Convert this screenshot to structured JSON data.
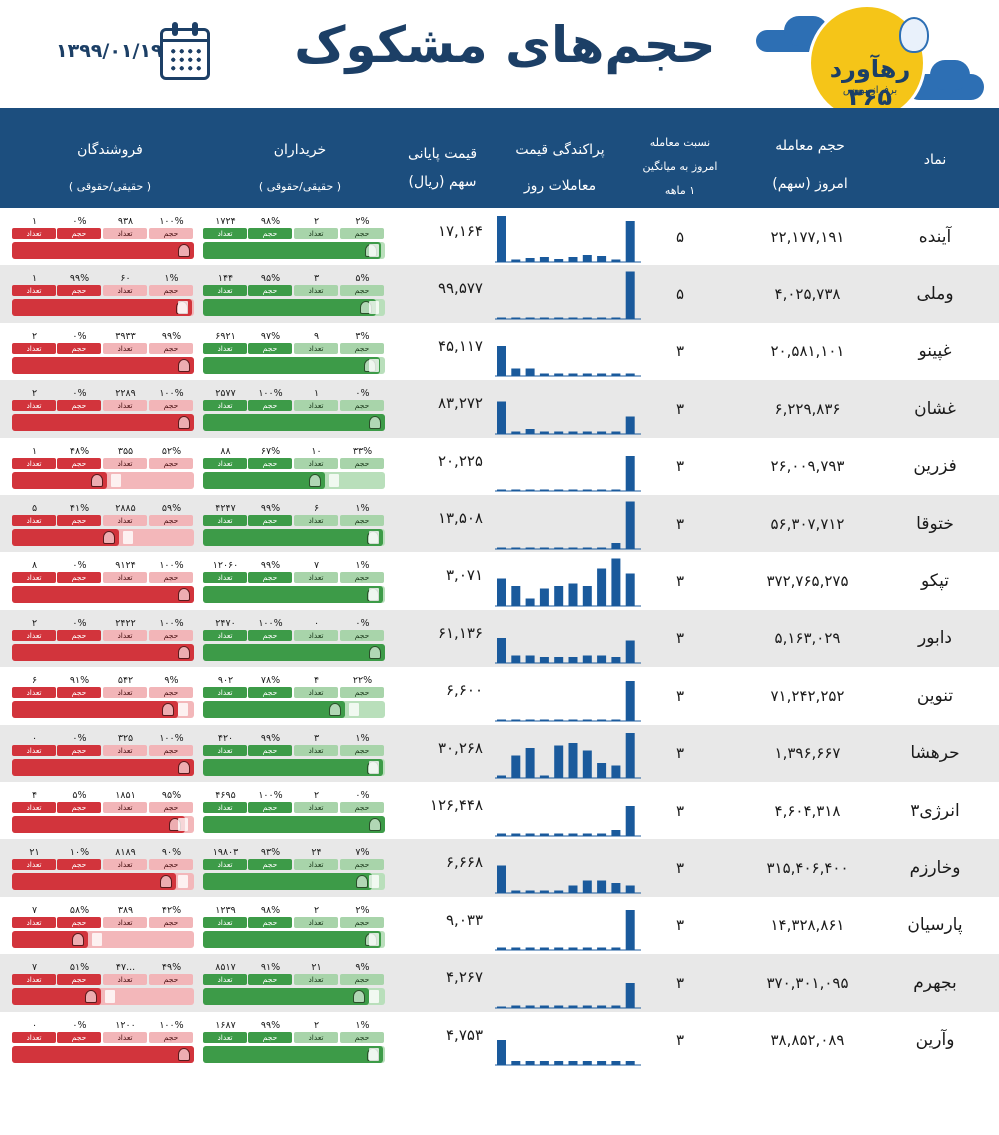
{
  "header": {
    "date": "۱۳۹۹/۰۱/۱۹",
    "title": "حجم‌های مشکوک",
    "calendar_icon": "calendar-icon",
    "logo": {
      "main": "رهآورد ۳۶۵",
      "sub": "برفراز بورس"
    }
  },
  "columns": {
    "symbol": "نماد",
    "volume": [
      "حجم معامله",
      "امروز (سهم)"
    ],
    "ratio": [
      "نسبت معامله",
      "امروز به میانگین",
      "۱ ماهه"
    ],
    "dist": [
      "پراکندگی قیمت",
      "معاملات روز"
    ],
    "price": [
      "قیمت پایانی",
      "سهم (ریال)"
    ],
    "buyers": [
      "خریداران",
      "( حقیقی/حقوقی )"
    ],
    "sellers": [
      "فروشندگان",
      "( حقیقی/حقوقی )"
    ]
  },
  "labels": {
    "volume": "حجم",
    "count": "تعداد"
  },
  "colors": {
    "header": "#1c4e7e",
    "title": "#1c3f66",
    "buy": "#3d9b48",
    "buy_light": "#b9dfbb",
    "sell": "#d2343c",
    "sell_light": "#f3b7ba",
    "bars": "#1a5a9c"
  },
  "rows": [
    {
      "symbol": "آینده",
      "volume": "۲۲,۱۷۷,۱۹۱",
      "ratio": "۵",
      "price": "۱۷,۱۶۴",
      "buy": [
        "۲%",
        "۲",
        "۹۸%",
        "۱۷۲۴"
      ],
      "buy_fill": 0.98,
      "sell": [
        "۱۰۰%",
        "۹۳۸",
        "۰%",
        "۱"
      ],
      "sell_fill": 1.0,
      "dist": [
        0.92,
        0.05,
        0.08,
        0.1,
        0.06,
        0.1,
        0.14,
        0.12,
        0.05,
        0.82
      ]
    },
    {
      "symbol": "وملی",
      "volume": "۴,۰۲۵,۷۳۸",
      "ratio": "۵",
      "price": "۹۹,۵۷۷",
      "buy": [
        "۵%",
        "۳",
        "۹۵%",
        "۱۴۴"
      ],
      "buy_fill": 0.95,
      "sell": [
        "۱%",
        "۶۰",
        "۹۹%",
        "۱"
      ],
      "sell_fill": 0.99,
      "dist": [
        0,
        0,
        0,
        0,
        0,
        0,
        0,
        0,
        0,
        0.95
      ]
    },
    {
      "symbol": "غپینو",
      "volume": "۲۰,۵۸۱,۱۰۱",
      "ratio": "۳",
      "price": "۴۵,۱۱۷",
      "buy": [
        "۳%",
        "۹",
        "۹۷%",
        "۶۹۲۱"
      ],
      "buy_fill": 0.97,
      "sell": [
        "۹۹%",
        "۳۹۳۳",
        "۰%",
        "۲"
      ],
      "sell_fill": 1.0,
      "dist": [
        0.6,
        0.15,
        0.15,
        0.05,
        0.05,
        0.05,
        0.05,
        0.05,
        0.05,
        0.05
      ]
    },
    {
      "symbol": "غشان",
      "volume": "۶,۲۲۹,۸۳۶",
      "ratio": "۳",
      "price": "۸۳,۲۷۲",
      "buy": [
        "۰%",
        "۱",
        "۱۰۰%",
        "۲۵۷۷"
      ],
      "buy_fill": 1.0,
      "sell": [
        "۱۰۰%",
        "۲۲۸۹",
        "۰%",
        "۲"
      ],
      "sell_fill": 1.0,
      "dist": [
        0.65,
        0.05,
        0.1,
        0.05,
        0.05,
        0.05,
        0.05,
        0.05,
        0.05,
        0.35
      ]
    },
    {
      "symbol": "فزرین",
      "volume": "۲۶,۰۰۹,۷۹۳",
      "ratio": "۳",
      "price": "۲۰,۲۲۵",
      "buy": [
        "۳۳%",
        "۱۰",
        "۶۷%",
        "۸۸"
      ],
      "buy_fill": 0.67,
      "sell": [
        "۵۲%",
        "۳۵۵",
        "۴۸%",
        "۱"
      ],
      "sell_fill": 0.52,
      "dist": [
        0,
        0,
        0,
        0,
        0,
        0,
        0,
        0,
        0,
        0.7
      ]
    },
    {
      "symbol": "ختوقا",
      "volume": "۵۶,۳۰۷,۷۱۲",
      "ratio": "۳",
      "price": "۱۳,۵۰۸",
      "buy": [
        "۱%",
        "۶",
        "۹۹%",
        "۴۲۴۷"
      ],
      "buy_fill": 0.99,
      "sell": [
        "۵۹%",
        "۲۸۸۵",
        "۴۱%",
        "۵"
      ],
      "sell_fill": 0.59,
      "dist": [
        0,
        0.02,
        0.02,
        0.02,
        0.02,
        0.02,
        0.02,
        0.02,
        0.12,
        0.95
      ]
    },
    {
      "symbol": "تپکو",
      "volume": "۳۷۲,۷۶۵,۲۷۵",
      "ratio": "۳",
      "price": "۳,۰۷۱",
      "buy": [
        "۱%",
        "۷",
        "۹۹%",
        "۱۲۰۶۰"
      ],
      "buy_fill": 0.99,
      "sell": [
        "۱۰۰%",
        "۹۱۲۴",
        "۰%",
        "۸"
      ],
      "sell_fill": 1.0,
      "dist": [
        0.55,
        0.4,
        0.15,
        0.35,
        0.4,
        0.45,
        0.4,
        0.75,
        0.95,
        0.65
      ]
    },
    {
      "symbol": "دابور",
      "volume": "۵,۱۶۳,۰۲۹",
      "ratio": "۳",
      "price": "۶۱,۱۳۶",
      "buy": [
        "۰%",
        "۰",
        "۱۰۰%",
        "۲۴۷۰"
      ],
      "buy_fill": 1.0,
      "sell": [
        "۱۰۰%",
        "۲۴۲۲",
        "۰%",
        "۲"
      ],
      "sell_fill": 1.0,
      "dist": [
        0.5,
        0.15,
        0.15,
        0.12,
        0.12,
        0.12,
        0.15,
        0.15,
        0.12,
        0.45
      ]
    },
    {
      "symbol": "تنوین",
      "volume": "۷۱,۲۴۲,۲۵۲",
      "ratio": "۳",
      "price": "۶,۶۰۰",
      "buy": [
        "۲۲%",
        "۴",
        "۷۸%",
        "۹۰۲"
      ],
      "buy_fill": 0.78,
      "sell": [
        "۹%",
        "۵۴۲",
        "۹۱%",
        "۶"
      ],
      "sell_fill": 0.91,
      "dist": [
        0,
        0,
        0,
        0,
        0,
        0,
        0,
        0,
        0,
        0.8
      ]
    },
    {
      "symbol": "حرهشا",
      "volume": "۱,۳۹۶,۶۶۷",
      "ratio": "۳",
      "price": "۳۰,۲۶۸",
      "buy": [
        "۱%",
        "۳",
        "۹۹%",
        "۴۲۰"
      ],
      "buy_fill": 0.99,
      "sell": [
        "۱۰۰%",
        "۳۲۵",
        "۰%",
        "۰"
      ],
      "sell_fill": 1.0,
      "dist": [
        0.05,
        0.45,
        0.6,
        0.05,
        0.65,
        0.7,
        0.55,
        0.3,
        0.25,
        0.9
      ]
    },
    {
      "symbol": "انرژی۳",
      "volume": "۴,۶۰۴,۳۱۸",
      "ratio": "۳",
      "price": "۱۲۶,۴۴۸",
      "buy": [
        "۰%",
        "۲",
        "۱۰۰%",
        "۴۶۹۵"
      ],
      "buy_fill": 1.0,
      "sell": [
        "۹۵%",
        "۱۸۵۱",
        "۵%",
        "۴"
      ],
      "sell_fill": 0.95,
      "dist": [
        0.05,
        0.05,
        0.05,
        0.05,
        0.05,
        0.05,
        0.05,
        0.05,
        0.12,
        0.6
      ]
    },
    {
      "symbol": "وخارزم",
      "volume": "۳۱۵,۴۰۶,۴۰۰",
      "ratio": "۳",
      "price": "۶,۶۶۸",
      "buy": [
        "۷%",
        "۲۴",
        "۹۳%",
        "۱۹۸۰۳"
      ],
      "buy_fill": 0.93,
      "sell": [
        "۹۰%",
        "۸۱۸۹",
        "۱۰%",
        "۲۱"
      ],
      "sell_fill": 0.9,
      "dist": [
        0.55,
        0.05,
        0.05,
        0.05,
        0.05,
        0.15,
        0.25,
        0.25,
        0.2,
        0.15
      ]
    },
    {
      "symbol": "پارسیان",
      "volume": "۱۴,۳۲۸,۸۶۱",
      "ratio": "۳",
      "price": "۹,۰۳۳",
      "buy": [
        "۲%",
        "۲",
        "۹۸%",
        "۱۲۳۹"
      ],
      "buy_fill": 0.98,
      "sell": [
        "۴۲%",
        "۳۸۹",
        "۵۸%",
        "۷"
      ],
      "sell_fill": 0.42,
      "dist": [
        0.05,
        0.05,
        0.05,
        0.05,
        0.05,
        0.05,
        0.05,
        0.05,
        0.05,
        0.8
      ]
    },
    {
      "symbol": "بجهرم",
      "volume": "۳۷۰,۳۰۱,۰۹۵",
      "ratio": "۳",
      "price": "۴,۲۶۷",
      "buy": [
        "۹%",
        "۲۱",
        "۹۱%",
        "۸۵۱۷"
      ],
      "buy_fill": 0.91,
      "sell": [
        "۴۹%",
        "۴۷...",
        "۵۱%",
        "۷"
      ],
      "sell_fill": 0.49,
      "dist": [
        0,
        0.05,
        0.05,
        0.05,
        0.05,
        0.05,
        0.05,
        0.05,
        0.05,
        0.5
      ]
    },
    {
      "symbol": "وآرین",
      "volume": "۳۸,۸۵۲,۰۸۹",
      "ratio": "۳",
      "price": "۴,۷۵۳",
      "buy": [
        "۱%",
        "۲",
        "۹۹%",
        "۱۶۸۷"
      ],
      "buy_fill": 0.99,
      "sell": [
        "۱۰۰%",
        "۱۲۰۰",
        "۰%",
        "۰"
      ],
      "sell_fill": 1.0,
      "dist": [
        0.5,
        0.08,
        0.08,
        0.08,
        0.08,
        0.08,
        0.08,
        0.08,
        0.08,
        0.08
      ]
    }
  ]
}
